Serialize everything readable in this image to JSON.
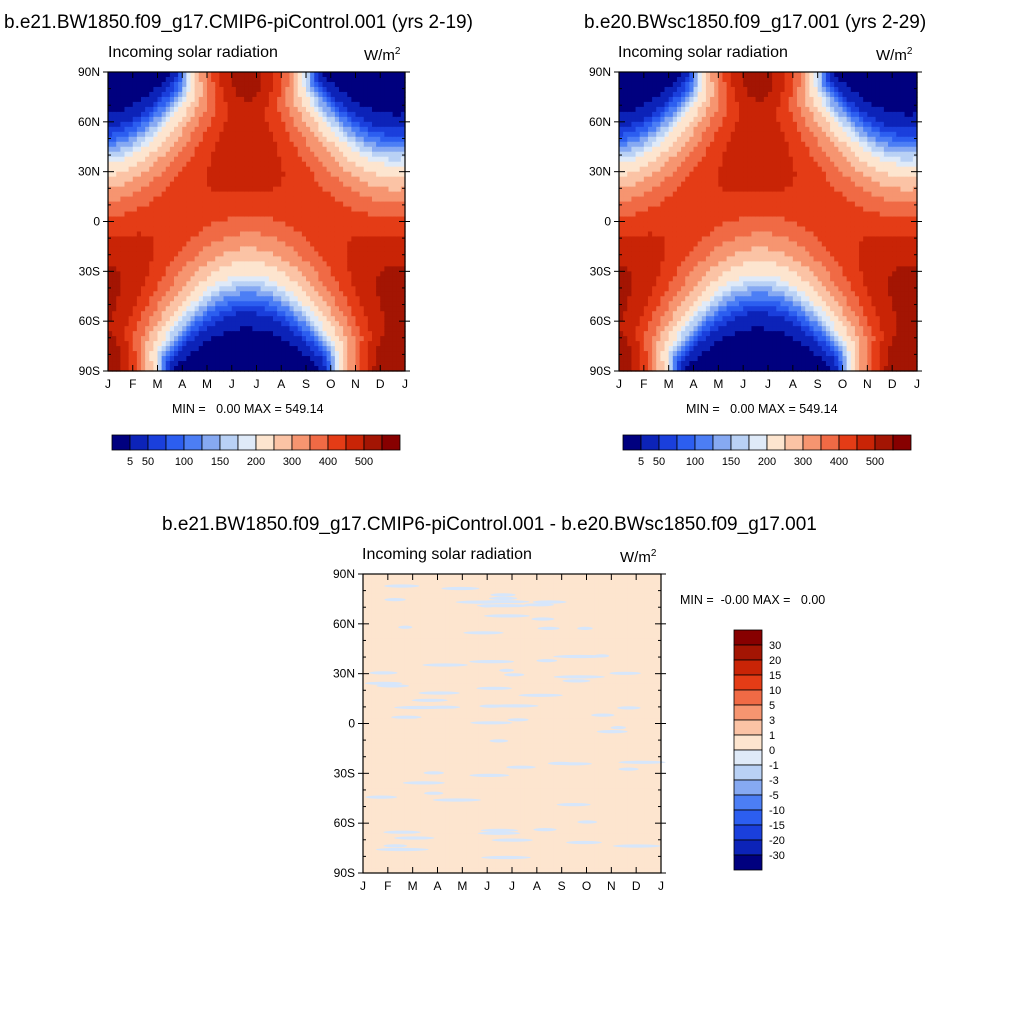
{
  "panels": [
    {
      "title": "b.e21.BW1850.f09_g17.CMIP6-piControl.001 (yrs 2-19)",
      "subtitle": "Incoming solar radiation",
      "units_base": "W/m",
      "units_exp": "2",
      "min_label": "MIN =",
      "min_value": "0.00",
      "max_label": "MAX =",
      "max_value": "549.14",
      "colorbar_labels": [
        "5",
        "50",
        "100",
        "150",
        "200",
        "300",
        "400",
        "500"
      ]
    },
    {
      "title": "b.e20.BWsc1850.f09_g17.001 (yrs 2-29)",
      "subtitle": "Incoming solar radiation",
      "units_base": "W/m",
      "units_exp": "2",
      "min_label": "MIN =",
      "min_value": "0.00",
      "max_label": "MAX =",
      "max_value": "549.14",
      "colorbar_labels": [
        "5",
        "50",
        "100",
        "150",
        "200",
        "300",
        "400",
        "500"
      ]
    },
    {
      "title": "b.e21.BW1850.f09_g17.CMIP6-piControl.001 - b.e20.BWsc1850.f09_g17.001",
      "subtitle": "Incoming solar radiation",
      "units_base": "W/m",
      "units_exp": "2",
      "min_label": "MIN =",
      "min_value": "-0.00",
      "max_label": "MAX =",
      "max_value": "0.00",
      "colorbar_labels": [
        "30",
        "20",
        "15",
        "10",
        "5",
        "3",
        "1",
        "0",
        "-1",
        "-3",
        "-5",
        "-10",
        "-15",
        "-20",
        "-30"
      ]
    }
  ],
  "chart_data": [
    {
      "type": "heatmap",
      "title": "b.e21.BW1850.f09_g17.CMIP6-piControl.001 (yrs 2-19)",
      "subtitle": "Incoming solar radiation",
      "units": "W/m2",
      "x_tick_labels": [
        "J",
        "F",
        "M",
        "A",
        "M",
        "J",
        "J",
        "A",
        "S",
        "O",
        "N",
        "D",
        "J"
      ],
      "y_tick_labels": [
        "90N",
        "60N",
        "30N",
        "0",
        "30S",
        "60S",
        "90S"
      ],
      "y_values": [
        90,
        60,
        30,
        0,
        -30,
        -60,
        -90
      ],
      "contour_levels": [
        5,
        50,
        75,
        100,
        125,
        150,
        175,
        200,
        250,
        300,
        350,
        400,
        450,
        500
      ],
      "colors": [
        "#00007f",
        "#0c23b8",
        "#1a3fdc",
        "#2c5ef0",
        "#4c7ef5",
        "#86a9f2",
        "#b9d1f5",
        "#dfeaf8",
        "#fde5cf",
        "#fbc3a5",
        "#f69570",
        "#f06a45",
        "#e43c16",
        "#c92406",
        "#a31503",
        "#870000"
      ],
      "min": 0.0,
      "max": 549.14
    },
    {
      "type": "heatmap",
      "title": "b.e20.BWsc1850.f09_g17.001 (yrs 2-29)",
      "subtitle": "Incoming solar radiation",
      "units": "W/m2",
      "x_tick_labels": [
        "J",
        "F",
        "M",
        "A",
        "M",
        "J",
        "J",
        "A",
        "S",
        "O",
        "N",
        "D",
        "J"
      ],
      "y_tick_labels": [
        "90N",
        "60N",
        "30N",
        "0",
        "30S",
        "60S",
        "90S"
      ],
      "y_values": [
        90,
        60,
        30,
        0,
        -30,
        -60,
        -90
      ],
      "contour_levels": [
        5,
        50,
        75,
        100,
        125,
        150,
        175,
        200,
        250,
        300,
        350,
        400,
        450,
        500
      ],
      "colors": [
        "#00007f",
        "#0c23b8",
        "#1a3fdc",
        "#2c5ef0",
        "#4c7ef5",
        "#86a9f2",
        "#b9d1f5",
        "#dfeaf8",
        "#fde5cf",
        "#fbc3a5",
        "#f69570",
        "#f06a45",
        "#e43c16",
        "#c92406",
        "#a31503",
        "#870000"
      ],
      "min": 0.0,
      "max": 549.14
    },
    {
      "type": "heatmap",
      "title": "b.e21.BW1850.f09_g17.CMIP6-piControl.001 - b.e20.BWsc1850.f09_g17.001",
      "subtitle": "Incoming solar radiation",
      "units": "W/m2",
      "x_tick_labels": [
        "J",
        "F",
        "M",
        "A",
        "M",
        "J",
        "J",
        "A",
        "S",
        "O",
        "N",
        "D",
        "J"
      ],
      "y_tick_labels": [
        "90N",
        "60N",
        "30N",
        "0",
        "30S",
        "60S",
        "90S"
      ],
      "y_values": [
        90,
        60,
        30,
        0,
        -30,
        -60,
        -90
      ],
      "contour_levels": [
        -30,
        -20,
        -15,
        -10,
        -5,
        -3,
        -1,
        0,
        1,
        3,
        5,
        10,
        15,
        20,
        30
      ],
      "colors": [
        "#00007f",
        "#0c23b8",
        "#1a3fdc",
        "#2c5ef0",
        "#4c7ef5",
        "#86a9f2",
        "#b9d1f5",
        "#dfeaf8",
        "#fde5cf",
        "#fbc3a5",
        "#f69570",
        "#f06a45",
        "#e43c16",
        "#c92406",
        "#a31503",
        "#870000"
      ],
      "background_level_color": "#fde5cf",
      "min": -0.0,
      "max": 0.0
    }
  ]
}
